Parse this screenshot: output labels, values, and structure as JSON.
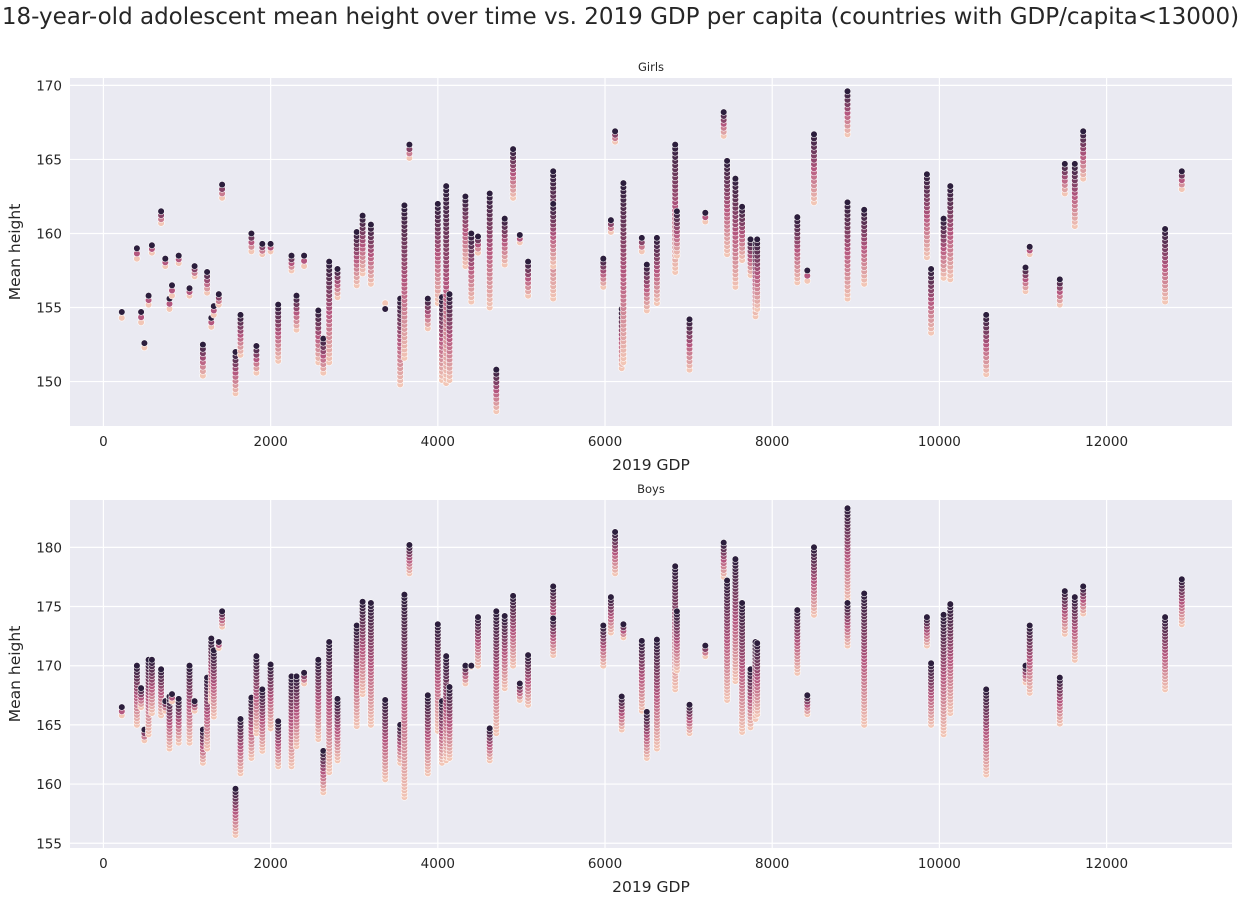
{
  "title": "18-year-old adolescent mean height over time vs. 2019 GDP per capita (countries with GDP/capita<13000)",
  "colors": {
    "background": "#eaeaf2",
    "grid": "#ffffff",
    "low": "#f2c6b6",
    "mid": "#b4577f",
    "high": "#2c1e3d"
  },
  "chart_data": [
    {
      "type": "scatter",
      "title": "Girls",
      "xlabel": "2019 GDP",
      "ylabel": "Mean height",
      "xlim": [
        -400,
        13500
      ],
      "ylim": [
        147,
        170.5
      ],
      "xticks": [
        0,
        2000,
        4000,
        6000,
        8000,
        10000,
        12000
      ],
      "yticks": [
        150,
        155,
        160,
        165,
        170
      ],
      "grid": true,
      "legend": "none",
      "series": [
        {
          "x": [
            220,
            400,
            450,
            490,
            540,
            580,
            690,
            740,
            790,
            820,
            900,
            1030,
            1090,
            1190,
            1240,
            1290,
            1320,
            1380,
            1420,
            1580,
            1640,
            1770,
            1830,
            1900,
            2000,
            2090,
            2250,
            2310,
            2400,
            2570,
            2630,
            2700,
            2800,
            3030,
            3100,
            3200,
            3370,
            3550,
            3600,
            3660,
            3880,
            4000,
            4050,
            4100,
            4140,
            4330,
            4400,
            4480,
            4620,
            4700,
            4800,
            4900,
            4980,
            5080,
            5380,
            5380,
            5980,
            6070,
            6120,
            6200,
            6220,
            6440,
            6500,
            6620,
            6840,
            6860,
            7010,
            7200,
            7420,
            7460,
            7560,
            7640,
            7740,
            7800,
            7820,
            8300,
            8420,
            8500,
            8900,
            8900,
            9100,
            9850,
            9900,
            10050,
            10130,
            10560,
            11030,
            11080,
            11440,
            11500,
            11620,
            11720,
            12700,
            12900
          ],
          "y_start": [
            154.3,
            158.3,
            154.0,
            152.3,
            155.2,
            158.7,
            160.7,
            157.8,
            154.9,
            155.8,
            158.0,
            155.8,
            157.1,
            150.4,
            156.0,
            153.7,
            154.5,
            155.2,
            162.4,
            149.2,
            151.8,
            158.8,
            150.6,
            158.6,
            158.8,
            151.4,
            157.5,
            153.5,
            157.8,
            151.3,
            150.6,
            151.3,
            155.7,
            156.5,
            157.3,
            156.6,
            155.3,
            149.8,
            151.6,
            165.1,
            153.6,
            155.3,
            150.1,
            149.9,
            150.1,
            157.8,
            155.4,
            158.7,
            155.0,
            148.0,
            157.9,
            162.4,
            159.4,
            155.8,
            155.6,
            157.8,
            156.4,
            160.1,
            166.2,
            150.9,
            151.3,
            158.8,
            154.8,
            155.3,
            157.4,
            158.5,
            150.8,
            160.8,
            166.6,
            158.6,
            156.4,
            158.2,
            157.2,
            154.4,
            154.9,
            156.7,
            156.8,
            162.1,
            166.7,
            155.6,
            156.6,
            158.4,
            153.3,
            157.0,
            156.9,
            150.5,
            156.1,
            158.6,
            155.2,
            162.7,
            160.5,
            163.7,
            155.4,
            163.0
          ],
          "y_end": [
            154.7,
            159.0,
            154.7,
            152.6,
            155.8,
            159.2,
            161.5,
            158.3,
            155.6,
            156.5,
            158.5,
            156.3,
            157.8,
            152.5,
            157.4,
            154.3,
            155.1,
            155.9,
            163.3,
            152.0,
            154.5,
            160.0,
            152.4,
            159.3,
            159.3,
            155.2,
            158.5,
            155.8,
            158.5,
            154.8,
            152.9,
            158.1,
            157.6,
            160.1,
            161.2,
            160.6,
            154.9,
            155.6,
            161.9,
            166.0,
            155.6,
            162.0,
            155.7,
            163.2,
            155.9,
            162.5,
            160.0,
            159.8,
            162.7,
            150.8,
            161.0,
            165.7,
            159.9,
            158.1,
            164.2,
            162.0,
            158.3,
            160.9,
            166.9,
            154.9,
            163.4,
            159.7,
            157.9,
            159.7,
            166.0,
            161.5,
            154.2,
            161.4,
            168.2,
            164.9,
            163.7,
            161.8,
            159.6,
            159.3,
            159.6,
            161.1,
            157.5,
            166.7,
            169.6,
            162.1,
            161.6,
            164.0,
            157.6,
            161.0,
            163.2,
            154.5,
            157.7,
            159.1,
            156.9,
            164.7,
            164.7,
            166.9,
            160.3,
            164.2
          ]
        }
      ]
    },
    {
      "type": "scatter",
      "title": "Boys",
      "xlabel": "2019 GDP",
      "ylabel": "Mean height",
      "xlim": [
        -400,
        13500
      ],
      "ylim": [
        154.6,
        184
      ],
      "xticks": [
        0,
        2000,
        4000,
        6000,
        8000,
        10000,
        12000
      ],
      "yticks": [
        155,
        160,
        165,
        170,
        175,
        180
      ],
      "grid": true,
      "legend": "none",
      "series": [
        {
          "x": [
            220,
            400,
            450,
            490,
            540,
            580,
            690,
            740,
            790,
            820,
            900,
            1030,
            1090,
            1190,
            1240,
            1290,
            1320,
            1380,
            1420,
            1580,
            1640,
            1770,
            1830,
            1900,
            2000,
            2090,
            2250,
            2310,
            2400,
            2570,
            2630,
            2700,
            2800,
            3030,
            3100,
            3200,
            3370,
            3550,
            3600,
            3660,
            3880,
            4000,
            4050,
            4100,
            4140,
            4330,
            4400,
            4480,
            4620,
            4700,
            4800,
            4900,
            4980,
            5080,
            5380,
            5380,
            5980,
            6070,
            6120,
            6200,
            6220,
            6440,
            6500,
            6620,
            6840,
            6860,
            7010,
            7200,
            7420,
            7460,
            7560,
            7640,
            7740,
            7800,
            7820,
            8300,
            8420,
            8500,
            8900,
            8900,
            9100,
            9850,
            9900,
            10050,
            10130,
            10560,
            11030,
            11080,
            11440,
            11500,
            11620,
            11720,
            12700,
            12900
          ],
          "y_start": [
            165.8,
            165.0,
            166.5,
            163.7,
            164.2,
            166.0,
            165.8,
            166.2,
            163.0,
            167.0,
            163.5,
            163.5,
            166.2,
            161.8,
            163.0,
            167.0,
            165.7,
            171.5,
            173.3,
            155.7,
            160.9,
            162.2,
            164.3,
            162.8,
            164.7,
            161.5,
            161.5,
            163.2,
            168.5,
            163.8,
            159.3,
            161.0,
            162.0,
            164.9,
            167.6,
            165.0,
            160.4,
            161.8,
            158.9,
            177.8,
            160.9,
            164.5,
            161.8,
            162.0,
            162.2,
            168.5,
            169.9,
            170.0,
            162.0,
            164.3,
            168.1,
            170.0,
            167.1,
            166.7,
            172.5,
            170.9,
            170.0,
            172.8,
            177.8,
            164.6,
            172.4,
            166.2,
            162.2,
            163.0,
            168.0,
            169.6,
            164.3,
            170.8,
            177.5,
            167.1,
            168.7,
            164.4,
            164.8,
            165.5,
            165.9,
            169.4,
            165.9,
            174.3,
            175.4,
            171.7,
            165.0,
            171.7,
            165.0,
            164.2,
            166.0,
            160.8,
            168.6,
            167.7,
            165.1,
            172.7,
            170.5,
            174.4,
            168.0,
            173.5
          ],
          "y_end": [
            166.5,
            170.0,
            168.1,
            164.6,
            170.5,
            170.5,
            169.7,
            167.0,
            167.4,
            167.6,
            167.2,
            170.0,
            167.0,
            164.6,
            169.0,
            172.3,
            171.3,
            172.0,
            174.6,
            159.6,
            165.5,
            167.3,
            170.8,
            168.0,
            170.1,
            165.3,
            169.1,
            169.1,
            169.4,
            170.5,
            162.8,
            172.0,
            167.2,
            173.4,
            175.4,
            175.3,
            167.1,
            165.0,
            176.0,
            180.2,
            167.5,
            173.5,
            167.0,
            170.8,
            168.2,
            170.0,
            170.0,
            174.1,
            164.7,
            174.6,
            174.2,
            175.9,
            168.5,
            170.9,
            176.7,
            174.0,
            173.4,
            175.8,
            181.3,
            167.4,
            173.5,
            172.1,
            166.1,
            172.2,
            178.4,
            174.6,
            166.7,
            171.7,
            180.4,
            177.2,
            179.0,
            175.3,
            169.7,
            172.0,
            171.9,
            174.7,
            167.5,
            180.0,
            183.3,
            175.3,
            176.1,
            174.1,
            170.2,
            174.3,
            175.2,
            168.0,
            170.0,
            173.4,
            169.0,
            176.3,
            175.8,
            176.7,
            174.1,
            177.3
          ]
        }
      ]
    }
  ]
}
